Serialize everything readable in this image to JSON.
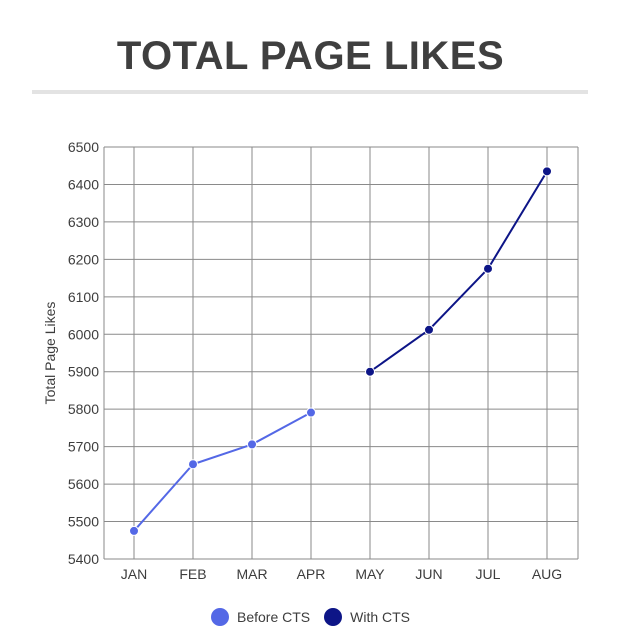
{
  "chart_data": {
    "type": "line",
    "title": "TOTAL PAGE LIKES",
    "xlabel": "",
    "ylabel": "Total Page Likes",
    "categories": [
      "JAN",
      "FEB",
      "MAR",
      "APR",
      "MAY",
      "JUN",
      "JUL",
      "AUG"
    ],
    "yticks": [
      "5400",
      "5500",
      "5600",
      "5700",
      "5800",
      "5900",
      "6000",
      "6100",
      "6200",
      "6300",
      "6400",
      "6500"
    ],
    "ylim": [
      5400,
      6500
    ],
    "grid": true,
    "legend_position": "bottom",
    "series": [
      {
        "name": "Before CTS",
        "color": "#5468e6",
        "values": [
          5475,
          5653,
          5706,
          5791,
          null,
          null,
          null,
          null
        ]
      },
      {
        "name": "With CTS",
        "color": "#0d1587",
        "values": [
          null,
          null,
          null,
          null,
          5900,
          6012,
          6175,
          6435
        ]
      }
    ]
  }
}
